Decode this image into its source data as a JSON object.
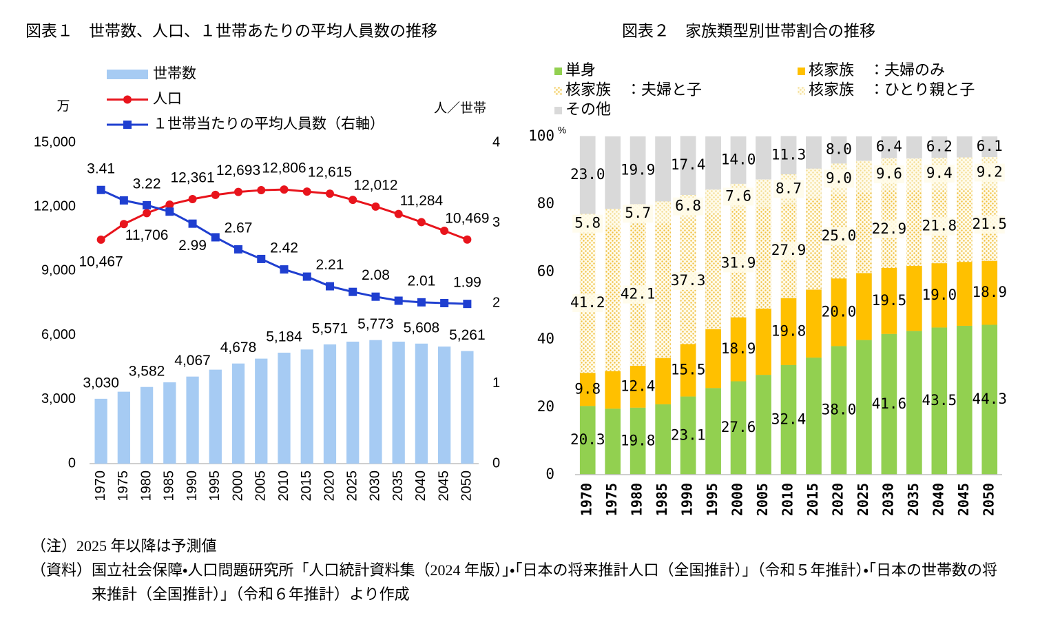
{
  "chart_data": [
    {
      "type": "combo",
      "title": "図表１　世帯数、人口、１世帯あたりの平均人員数の推移",
      "y_label": "万",
      "y2_label": "人／世帯",
      "categories": [
        "1970",
        "1975",
        "1980",
        "1985",
        "1990",
        "1995",
        "2000",
        "2005",
        "2010",
        "2015",
        "2020",
        "2025",
        "2030",
        "2035",
        "2040",
        "2045",
        "2050"
      ],
      "ylim": [
        0,
        15000
      ],
      "yticks": [
        0,
        {
          "value": 3000,
          "label": "3,000"
        },
        {
          "value": 6000,
          "label": "6,000"
        },
        {
          "value": 9000,
          "label": "9,000"
        },
        {
          "value": 12000,
          "label": "12,000"
        },
        {
          "value": 15000,
          "label": "15,000"
        }
      ],
      "y2lim": [
        0,
        4
      ],
      "y2ticks": [
        0,
        1,
        2,
        3,
        4
      ],
      "series": [
        {
          "name": "世帯数",
          "type": "bar",
          "color": "#a6cbf3",
          "values": [
            3030,
            3360,
            3582,
            3798,
            4067,
            4390,
            4678,
            4906,
            5184,
            5333,
            5571,
            5700,
            5773,
            5700,
            5608,
            5470,
            5261
          ],
          "value_labels": [
            "3,030",
            null,
            "3,582",
            null,
            "4,067",
            null,
            "4,678",
            null,
            "5,184",
            null,
            "5,571",
            null,
            "5,773",
            null,
            "5,608",
            null,
            "5,261"
          ]
        },
        {
          "name": "人口",
          "type": "line",
          "marker": "circle",
          "color": "#e8141c",
          "values": [
            10467,
            11194,
            11706,
            12105,
            12361,
            12557,
            12693,
            12777,
            12806,
            12709,
            12615,
            12326,
            12012,
            11664,
            11284,
            10880,
            10469
          ],
          "value_labels": [
            "10,467",
            null,
            "11,706",
            null,
            "12,361",
            null,
            "12,693",
            null,
            "12,806",
            null,
            "12,615",
            null,
            "12,012",
            null,
            "11,284",
            null,
            "10,469"
          ]
        },
        {
          "name": "１世帯当たりの平均人員数（右軸）",
          "type": "line",
          "marker": "square",
          "axis": "y2",
          "color": "#1f3fd0",
          "values": [
            3.41,
            3.28,
            3.22,
            3.14,
            2.99,
            2.82,
            2.67,
            2.55,
            2.42,
            2.33,
            2.21,
            2.14,
            2.08,
            2.03,
            2.01,
            2.0,
            1.99
          ],
          "value_labels": [
            "3.41",
            null,
            "3.22",
            null,
            "2.99",
            null,
            "2.67",
            null,
            "2.42",
            null,
            "2.21",
            null,
            "2.08",
            null,
            "2.01",
            null,
            "1.99"
          ]
        }
      ]
    },
    {
      "type": "stacked_bar",
      "title": "図表２　家族類型別世帯割合の推移",
      "y_label": "%",
      "categories": [
        "1970",
        "1975",
        "1980",
        "1985",
        "1990",
        "1995",
        "2000",
        "2005",
        "2010",
        "2015",
        "2020",
        "2025",
        "2030",
        "2035",
        "2040",
        "2045",
        "2050"
      ],
      "ylim": [
        0,
        100
      ],
      "yticks": [
        0,
        20,
        40,
        60,
        80,
        100
      ],
      "series": [
        {
          "name": "単身",
          "color": "#92d050",
          "values": [
            20.3,
            19.5,
            19.8,
            20.8,
            23.1,
            25.6,
            27.6,
            29.5,
            32.4,
            34.6,
            38.0,
            39.8,
            41.6,
            42.5,
            43.5,
            44.0,
            44.3
          ],
          "value_labels": [
            "20.3",
            null,
            "19.8",
            null,
            "23.1",
            null,
            "27.6",
            null,
            "32.4",
            null,
            "38.0",
            null,
            "41.6",
            null,
            "43.5",
            null,
            "44.3"
          ]
        },
        {
          "name": "核家族　：夫婦のみ",
          "color": "#ffc000",
          "values": [
            9.8,
            11.1,
            12.4,
            13.7,
            15.5,
            17.4,
            18.9,
            19.6,
            19.8,
            20.1,
            20.0,
            19.8,
            19.5,
            19.2,
            19.0,
            18.9,
            18.9
          ],
          "value_labels": [
            "9.8",
            null,
            "12.4",
            null,
            "15.5",
            null,
            "18.9",
            null,
            "19.8",
            null,
            "20.0",
            null,
            "19.5",
            null,
            "19.0",
            null,
            "18.9"
          ]
        },
        {
          "name": "核家族　：夫婦と子",
          "color": "#f0c040",
          "pattern": "dots",
          "values": [
            41.2,
            42.5,
            42.1,
            40.0,
            37.3,
            34.2,
            31.9,
            29.8,
            27.9,
            26.9,
            25.0,
            23.8,
            22.9,
            22.3,
            21.8,
            21.6,
            21.5
          ],
          "value_labels": [
            "41.2",
            null,
            "42.1",
            null,
            "37.3",
            null,
            "31.9",
            null,
            "27.9",
            null,
            "25.0",
            null,
            "22.9",
            null,
            "21.8",
            null,
            "21.5"
          ]
        },
        {
          "name": "核家族　：ひとり親と子",
          "color": "#f3dc90",
          "pattern": "dots",
          "values": [
            5.8,
            5.5,
            5.7,
            6.3,
            6.8,
            7.1,
            7.6,
            8.4,
            8.7,
            8.9,
            9.0,
            9.4,
            9.6,
            9.5,
            9.4,
            9.3,
            9.2
          ],
          "value_labels": [
            "5.8",
            null,
            "5.7",
            null,
            "6.8",
            null,
            "7.6",
            null,
            "8.7",
            null,
            "9.0",
            null,
            "9.6",
            null,
            "9.4",
            null,
            "9.2"
          ]
        },
        {
          "name": "その他",
          "color": "#d9d9d9",
          "values": [
            23.0,
            21.4,
            19.9,
            19.2,
            17.4,
            15.7,
            14.0,
            12.7,
            11.3,
            9.5,
            8.0,
            7.2,
            6.4,
            6.5,
            6.2,
            6.2,
            6.1
          ],
          "value_labels": [
            "23.0",
            null,
            "19.9",
            null,
            "17.4",
            null,
            "14.0",
            null,
            "11.3",
            null,
            "8.0",
            null,
            "6.4",
            null,
            "6.2",
            null,
            "6.1"
          ]
        }
      ]
    }
  ],
  "notes": [
    {
      "label": "（注）",
      "text": "2025 年以降は予測値"
    },
    {
      "label": "（資料）",
      "text": "国立社会保障・人口問題研究所「人口統計資料集（2024 年版）」・「日本の将来推計人口（全国推計）」（令和５年推計）・「日本の世帯数の将来推計（全国推計）」（令和６年推計）より作成"
    }
  ]
}
